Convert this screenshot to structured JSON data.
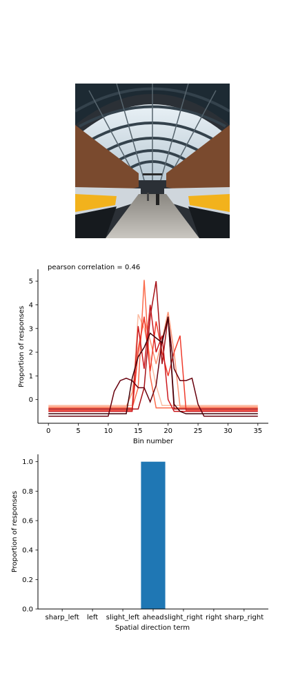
{
  "image": {
    "icon": "train-station-photo"
  },
  "chart_data": [
    {
      "type": "line",
      "title": "pearson correlation = 0.46",
      "xlabel": "Bin number",
      "ylabel": "Proportion of responses",
      "xlim": [
        -1.75,
        36.75
      ],
      "ylim": [
        -1.0,
        5.5
      ],
      "xticks": [
        0,
        5,
        10,
        15,
        20,
        25,
        30,
        35
      ],
      "yticks": [
        0,
        1,
        2,
        3,
        4,
        5
      ],
      "grid": false,
      "legend": "none",
      "x": [
        0,
        1,
        2,
        3,
        4,
        5,
        6,
        7,
        8,
        9,
        10,
        11,
        12,
        13,
        14,
        15,
        16,
        17,
        18,
        19,
        20,
        21,
        22,
        23,
        24,
        25,
        26,
        27,
        28,
        29,
        30,
        31,
        32,
        33,
        34,
        35
      ],
      "series": [
        {
          "color": "#fcbba1",
          "values": [
            -0.25,
            -0.25,
            -0.25,
            -0.25,
            -0.25,
            -0.25,
            -0.25,
            -0.25,
            -0.25,
            -0.25,
            -0.25,
            -0.25,
            -0.25,
            -0.25,
            -0.25,
            3.6,
            3.0,
            1.8,
            0.6,
            -0.25,
            -0.25,
            -0.25,
            -0.25,
            -0.25,
            -0.25,
            -0.25,
            -0.25,
            -0.25,
            -0.25,
            -0.25,
            -0.25,
            -0.25,
            -0.25,
            -0.25,
            -0.25,
            -0.25
          ]
        },
        {
          "color": "#fc9272",
          "values": [
            -0.3,
            -0.3,
            -0.3,
            -0.3,
            -0.3,
            -0.3,
            -0.3,
            -0.3,
            -0.3,
            -0.3,
            -0.3,
            -0.3,
            -0.3,
            -0.3,
            0.3,
            2.2,
            3.4,
            2.5,
            1.5,
            2.5,
            3.7,
            2.0,
            -0.3,
            -0.3,
            -0.3,
            -0.3,
            -0.3,
            -0.3,
            -0.3,
            -0.3,
            -0.3,
            -0.3,
            -0.3,
            -0.3,
            -0.3,
            -0.3
          ]
        },
        {
          "color": "#fb6a4a",
          "values": [
            -0.35,
            -0.35,
            -0.35,
            -0.35,
            -0.35,
            -0.35,
            -0.35,
            -0.35,
            -0.35,
            -0.35,
            -0.35,
            -0.35,
            -0.35,
            -0.35,
            -0.35,
            0.5,
            5.05,
            1.0,
            -0.35,
            -0.35,
            -0.35,
            -0.35,
            -0.35,
            -0.35,
            -0.35,
            -0.35,
            -0.35,
            -0.35,
            -0.35,
            -0.35,
            -0.35,
            -0.35,
            -0.35,
            -0.35,
            -0.35,
            -0.35
          ]
        },
        {
          "color": "#ef3b2c",
          "values": [
            -0.45,
            -0.45,
            -0.45,
            -0.45,
            -0.45,
            -0.45,
            -0.45,
            -0.45,
            -0.45,
            -0.45,
            -0.45,
            -0.45,
            -0.45,
            -0.45,
            -0.45,
            2.0,
            3.5,
            1.2,
            3.3,
            2.0,
            1.0,
            2.0,
            2.7,
            -0.45,
            -0.45,
            -0.45,
            -0.45,
            -0.45,
            -0.45,
            -0.45,
            -0.45,
            -0.45,
            -0.45,
            -0.45,
            -0.45,
            -0.45
          ]
        },
        {
          "color": "#cb181d",
          "values": [
            -0.5,
            -0.5,
            -0.5,
            -0.5,
            -0.5,
            -0.5,
            -0.5,
            -0.5,
            -0.5,
            -0.5,
            -0.5,
            -0.5,
            -0.5,
            -0.5,
            -0.5,
            3.1,
            1.3,
            4.0,
            2.0,
            2.7,
            0.0,
            -0.5,
            -0.5,
            -0.5,
            -0.5,
            -0.5,
            -0.5,
            -0.5,
            -0.5,
            -0.5,
            -0.5,
            -0.5,
            -0.5,
            -0.5,
            -0.5,
            -0.5
          ]
        },
        {
          "color": "#a50f15",
          "values": [
            -0.4,
            -0.4,
            -0.4,
            -0.4,
            -0.4,
            -0.4,
            -0.4,
            -0.4,
            -0.4,
            -0.4,
            -0.4,
            -0.4,
            -0.4,
            -0.4,
            -0.4,
            -0.4,
            0.5,
            3.5,
            5.0,
            1.5,
            3.5,
            -0.4,
            -0.4,
            -0.4,
            -0.4,
            -0.4,
            -0.4,
            -0.4,
            -0.4,
            -0.4,
            -0.4,
            -0.4,
            -0.4,
            -0.4,
            -0.4,
            -0.4
          ]
        },
        {
          "color": "#67000d",
          "values": [
            -0.7,
            -0.7,
            -0.7,
            -0.7,
            -0.7,
            -0.7,
            -0.7,
            -0.7,
            -0.7,
            -0.7,
            -0.7,
            0.35,
            0.8,
            0.9,
            0.8,
            0.5,
            0.5,
            -0.1,
            0.6,
            2.5,
            3.4,
            1.3,
            0.8,
            0.8,
            0.9,
            -0.2,
            -0.7,
            -0.7,
            -0.7,
            -0.7,
            -0.7,
            -0.7,
            -0.7,
            -0.7,
            -0.7,
            -0.7
          ]
        },
        {
          "color": "#3f0008",
          "values": [
            -0.6,
            -0.6,
            -0.6,
            -0.6,
            -0.6,
            -0.6,
            -0.6,
            -0.6,
            -0.6,
            -0.6,
            -0.6,
            -0.6,
            -0.6,
            -0.6,
            0.9,
            1.8,
            2.2,
            2.8,
            2.6,
            2.4,
            3.5,
            -0.2,
            -0.5,
            -0.6,
            -0.6,
            -0.6,
            -0.6,
            -0.6,
            -0.6,
            -0.6,
            -0.6,
            -0.6,
            -0.6,
            -0.6,
            -0.6,
            -0.6
          ]
        }
      ]
    },
    {
      "type": "bar",
      "xlabel": "Spatial direction term",
      "ylabel": "Proportion of responses",
      "categories": [
        "sharp_left",
        "left",
        "slight_left",
        "ahead",
        "slight_right",
        "right",
        "sharp_right"
      ],
      "values": [
        0,
        0,
        0,
        1.0,
        0,
        0,
        0
      ],
      "ylim": [
        0,
        1.05
      ],
      "yticks": [
        "0.0",
        "0.2",
        "0.4",
        "0.6",
        "0.8",
        "1.0"
      ],
      "bar_color": "#1f77b4",
      "grid": false,
      "legend": "none"
    }
  ]
}
